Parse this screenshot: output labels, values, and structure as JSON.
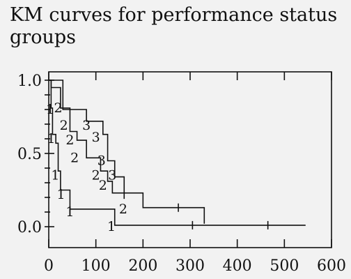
{
  "chart_data": {
    "type": "line",
    "title": "KM curves for performance status groups",
    "xlabel": "",
    "ylabel": "",
    "xlim": [
      0,
      600
    ],
    "ylim": [
      0,
      1
    ],
    "x_ticks": [
      0,
      100,
      200,
      300,
      400,
      500,
      600
    ],
    "x_tick_labels": [
      "0",
      "100",
      "200",
      "300",
      "400",
      "500",
      "600"
    ],
    "y_ticks": [
      0,
      0.5,
      1
    ],
    "y_tick_labels": [
      "0.0",
      "0.5",
      "1.0"
    ],
    "grid": false,
    "legend": "none",
    "series": [
      {
        "label": "1",
        "steps": [
          [
            0,
            1.0
          ],
          [
            5,
            0.81
          ],
          [
            8,
            0.63
          ],
          [
            15,
            0.57
          ],
          [
            20,
            0.38
          ],
          [
            25,
            0.25
          ],
          [
            45,
            0.12
          ],
          [
            140,
            0.01
          ],
          [
            545,
            0.01
          ]
        ],
        "censored": [
          [
            305,
            0.01
          ],
          [
            465,
            0.01
          ]
        ],
        "marks": [
          [
            3,
            0.8
          ],
          [
            5,
            0.6
          ],
          [
            14,
            0.35
          ],
          [
            26,
            0.22
          ],
          [
            45,
            0.1
          ],
          [
            133,
            0.0
          ]
        ]
      },
      {
        "label": "2",
        "steps": [
          [
            0,
            1.0
          ],
          [
            5,
            0.95
          ],
          [
            25,
            0.81
          ],
          [
            45,
            0.65
          ],
          [
            60,
            0.59
          ],
          [
            80,
            0.47
          ],
          [
            110,
            0.38
          ],
          [
            125,
            0.31
          ],
          [
            135,
            0.23
          ],
          [
            200,
            0.13
          ],
          [
            330,
            0.02
          ]
        ],
        "censored": [
          [
            275,
            0.13
          ]
        ],
        "marks": [
          [
            20,
            0.81
          ],
          [
            32,
            0.69
          ],
          [
            45,
            0.59
          ],
          [
            55,
            0.47
          ],
          [
            100,
            0.35
          ],
          [
            115,
            0.28
          ],
          [
            158,
            0.12
          ]
        ]
      },
      {
        "label": "3",
        "steps": [
          [
            0,
            1.0
          ],
          [
            30,
            0.95
          ],
          [
            30,
            0.8
          ],
          [
            80,
            0.8
          ],
          [
            80,
            0.72
          ],
          [
            115,
            0.72
          ],
          [
            115,
            0.63
          ],
          [
            125,
            0.63
          ],
          [
            125,
            0.45
          ],
          [
            140,
            0.45
          ],
          [
            140,
            0.34
          ],
          [
            160,
            0.34
          ],
          [
            160,
            0.19
          ]
        ],
        "censored": [],
        "marks": [
          [
            80,
            0.69
          ],
          [
            100,
            0.61
          ],
          [
            112,
            0.45
          ],
          [
            135,
            0.35
          ]
        ]
      }
    ]
  }
}
